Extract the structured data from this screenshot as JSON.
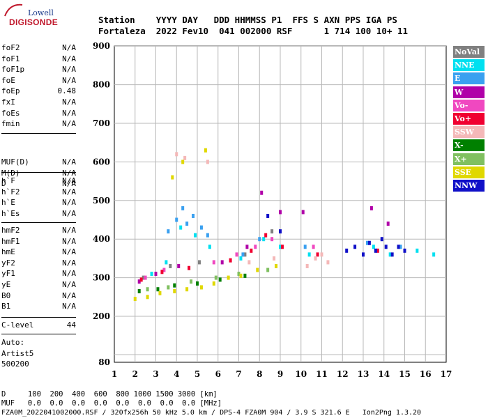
{
  "logo": {
    "top": "Lowell",
    "main": "DIGISONDE"
  },
  "header": {
    "line1": "Station    YYYY DAY   DDD HHMMSS P1  FFS S AXN PPS IGA PS",
    "line2": "Fortaleza  2022 Fev10  041 002000 RSF      1 714 100 10+ 11"
  },
  "params": [
    {
      "group": 1,
      "items": [
        {
          "name": "foF2",
          "value": "N/A"
        },
        {
          "name": "foF1",
          "value": "N/A"
        },
        {
          "name": "foF1p",
          "value": "N/A"
        },
        {
          "name": "foE",
          "value": "N/A"
        },
        {
          "name": "foEp",
          "value": "0.48"
        },
        {
          "name": "fxI",
          "value": "N/A"
        },
        {
          "name": "foEs",
          "value": "N/A"
        },
        {
          "name": "fmin",
          "value": "N/A"
        }
      ]
    },
    {
      "group": 2,
      "items": [
        {
          "name": "MUF(D)",
          "value": "N/A"
        },
        {
          "name": "M(D)",
          "value": "N/A"
        },
        {
          "name": "D",
          "value": "N/A"
        }
      ]
    },
    {
      "group": 3,
      "items": [
        {
          "name": "h`F",
          "value": "N/A"
        },
        {
          "name": "h`F2",
          "value": "N/A"
        },
        {
          "name": "h`E",
          "value": "N/A"
        },
        {
          "name": "h`Es",
          "value": "N/A"
        }
      ]
    },
    {
      "group": 4,
      "items": [
        {
          "name": "hmF2",
          "value": "N/A"
        },
        {
          "name": "hmF1",
          "value": "N/A"
        },
        {
          "name": "hmE",
          "value": "N/A"
        },
        {
          "name": "yF2",
          "value": "N/A"
        },
        {
          "name": "yF1",
          "value": "N/A"
        },
        {
          "name": "yE",
          "value": "N/A"
        },
        {
          "name": "B0",
          "value": "N/A"
        },
        {
          "name": "B1",
          "value": "N/A"
        }
      ]
    },
    {
      "group": 5,
      "items": [
        {
          "name": "C-level",
          "value": "44"
        }
      ]
    }
  ],
  "auto": {
    "label": "Auto:",
    "system": "Artist5",
    "code": "500200"
  },
  "legend": [
    {
      "label": "NoVal",
      "color": "#808080",
      "text": "#ffffff"
    },
    {
      "label": "NNE",
      "color": "#00e0f0",
      "text": "#ffffff"
    },
    {
      "label": "E",
      "color": "#3aa0f0",
      "text": "#ffffff"
    },
    {
      "label": "W",
      "color": "#b000a8",
      "text": "#ffffff"
    },
    {
      "label": "Vo-",
      "color": "#f048c0",
      "text": "#ffffff"
    },
    {
      "label": "Vo+",
      "color": "#f00030",
      "text": "#ffffff"
    },
    {
      "label": "SSW",
      "color": "#f4b8b8",
      "text": "#ffffff"
    },
    {
      "label": "X-",
      "color": "#008000",
      "text": "#ffffff"
    },
    {
      "label": "X+",
      "color": "#80c060",
      "text": "#ffffff"
    },
    {
      "label": "SSE",
      "color": "#e0d800",
      "text": "#ffffff"
    },
    {
      "label": "NNW",
      "color": "#1010c8",
      "text": "#ffffff"
    }
  ],
  "footer": {
    "line1": "D     100  200  400  600  800 1000 1500 3000 [km]",
    "line2": "MUF   0.0  0.0  0.0  0.0  0.0  0.0  0.0  0.0 [MHz]",
    "line3": "FZA0M_2022041002000.RSF / 320fx256h 50 kHz 5.0 km / DPS-4 FZA0M 904 / 3.9 S 321.6 E   Ion2Png 1.3.20"
  },
  "chart_data": {
    "type": "scatter",
    "title": "",
    "xlabel": "",
    "ylabel": "",
    "xlim": [
      1,
      17
    ],
    "ylim": [
      80,
      900
    ],
    "x_ticks": [
      1,
      2,
      3,
      4,
      5,
      6,
      7,
      8,
      9,
      10,
      11,
      12,
      13,
      14,
      15,
      16,
      17
    ],
    "y_ticks": [
      80,
      200,
      300,
      400,
      500,
      600,
      700,
      800,
      900
    ],
    "y_gridlines": [
      100,
      200,
      300,
      400,
      500,
      600,
      700,
      800,
      900
    ],
    "grid": true,
    "series": [
      {
        "name": "NoVal",
        "color": "#808080",
        "points": [
          [
            2.4,
            300
          ],
          [
            3.7,
            330
          ],
          [
            5.1,
            340
          ],
          [
            7.3,
            360
          ],
          [
            8.6,
            420
          ]
        ]
      },
      {
        "name": "NNE",
        "color": "#00e0f0",
        "points": [
          [
            2.8,
            310
          ],
          [
            3.5,
            340
          ],
          [
            4.2,
            430
          ],
          [
            4.9,
            410
          ],
          [
            5.6,
            380
          ],
          [
            7.1,
            350
          ],
          [
            8.2,
            400
          ],
          [
            9.0,
            380
          ],
          [
            10.4,
            360
          ],
          [
            13.5,
            380
          ],
          [
            14.3,
            360
          ],
          [
            15.6,
            370
          ],
          [
            16.4,
            360
          ]
        ]
      },
      {
        "name": "E",
        "color": "#3aa0f0",
        "points": [
          [
            3.6,
            420
          ],
          [
            4.0,
            450
          ],
          [
            4.3,
            480
          ],
          [
            4.5,
            440
          ],
          [
            4.8,
            460
          ],
          [
            5.2,
            430
          ],
          [
            5.5,
            410
          ],
          [
            7.2,
            360
          ],
          [
            8.0,
            400
          ],
          [
            10.2,
            380
          ],
          [
            13.2,
            390
          ],
          [
            14.8,
            380
          ]
        ]
      },
      {
        "name": "W",
        "color": "#b000a8",
        "points": [
          [
            2.2,
            290
          ],
          [
            3.0,
            310
          ],
          [
            4.1,
            330
          ],
          [
            6.2,
            340
          ],
          [
            7.4,
            380
          ],
          [
            8.1,
            520
          ],
          [
            9.0,
            470
          ],
          [
            10.1,
            470
          ],
          [
            13.4,
            480
          ],
          [
            14.2,
            440
          ]
        ]
      },
      {
        "name": "Vo-",
        "color": "#f048c0",
        "points": [
          [
            2.5,
            300
          ],
          [
            3.4,
            320
          ],
          [
            5.8,
            340
          ],
          [
            6.9,
            360
          ],
          [
            7.8,
            380
          ],
          [
            8.6,
            400
          ],
          [
            10.6,
            380
          ]
        ]
      },
      {
        "name": "Vo+",
        "color": "#f00030",
        "points": [
          [
            2.3,
            295
          ],
          [
            3.3,
            315
          ],
          [
            4.6,
            325
          ],
          [
            6.6,
            345
          ],
          [
            7.6,
            370
          ],
          [
            8.3,
            410
          ],
          [
            9.1,
            380
          ],
          [
            10.8,
            360
          ],
          [
            13.7,
            370
          ]
        ]
      },
      {
        "name": "SSW",
        "color": "#f4b8b8",
        "points": [
          [
            4.0,
            620
          ],
          [
            4.4,
            610
          ],
          [
            5.5,
            600
          ],
          [
            7.5,
            340
          ],
          [
            8.7,
            350
          ],
          [
            10.3,
            330
          ],
          [
            10.7,
            350
          ],
          [
            11.0,
            360
          ],
          [
            11.3,
            340
          ]
        ]
      },
      {
        "name": "X-",
        "color": "#008000",
        "points": [
          [
            2.2,
            265
          ],
          [
            3.1,
            270
          ],
          [
            3.9,
            280
          ],
          [
            5.0,
            285
          ],
          [
            6.1,
            295
          ],
          [
            7.3,
            305
          ]
        ]
      },
      {
        "name": "X+",
        "color": "#80c060",
        "points": [
          [
            2.6,
            270
          ],
          [
            3.6,
            275
          ],
          [
            4.7,
            290
          ],
          [
            5.9,
            300
          ],
          [
            7.0,
            310
          ],
          [
            8.4,
            320
          ]
        ]
      },
      {
        "name": "SSE",
        "color": "#e0d800",
        "points": [
          [
            2.0,
            245
          ],
          [
            2.6,
            250
          ],
          [
            3.2,
            260
          ],
          [
            3.9,
            265
          ],
          [
            4.5,
            270
          ],
          [
            5.2,
            275
          ],
          [
            5.8,
            285
          ],
          [
            6.5,
            300
          ],
          [
            7.1,
            305
          ],
          [
            7.9,
            320
          ],
          [
            8.8,
            330
          ],
          [
            3.8,
            560
          ],
          [
            4.3,
            600
          ],
          [
            5.4,
            630
          ]
        ]
      },
      {
        "name": "NNW",
        "color": "#1010c8",
        "points": [
          [
            12.2,
            370
          ],
          [
            12.6,
            380
          ],
          [
            13.0,
            360
          ],
          [
            13.3,
            390
          ],
          [
            13.6,
            370
          ],
          [
            13.9,
            400
          ],
          [
            14.1,
            380
          ],
          [
            14.4,
            360
          ],
          [
            14.7,
            380
          ],
          [
            15.0,
            370
          ],
          [
            8.4,
            460
          ],
          [
            9.0,
            420
          ]
        ]
      }
    ]
  }
}
